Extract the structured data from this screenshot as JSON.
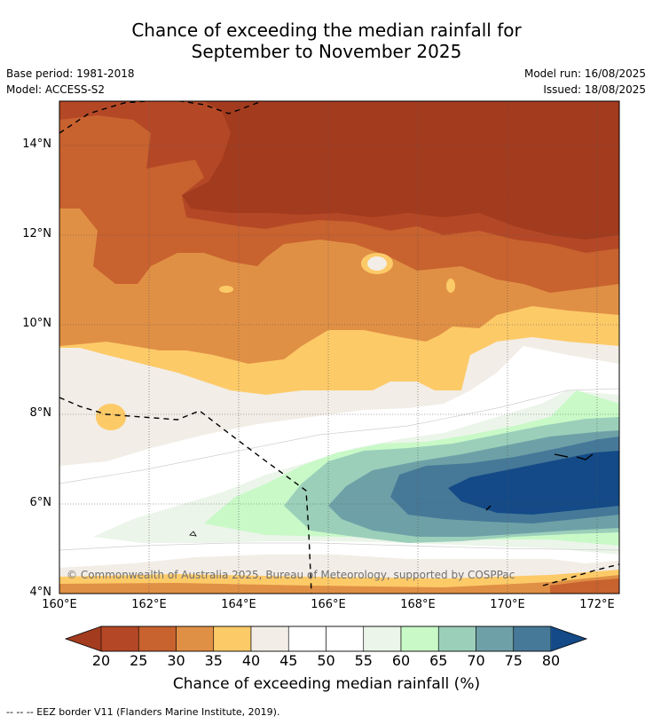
{
  "title": {
    "line1": "Chance of exceeding the median rainfall for",
    "line2": "September to November 2025"
  },
  "meta": {
    "base_period": "Base period: 1981-2018",
    "model": "Model: ACCESS-S2",
    "model_run": "Model run: 16/08/2025",
    "issued": "Issued: 18/08/2025"
  },
  "map": {
    "lon_range": [
      160,
      172.5
    ],
    "lat_range": [
      4,
      15
    ],
    "x_ticks": [
      "160°E",
      "162°E",
      "164°E",
      "166°E",
      "168°E",
      "170°E",
      "172°E"
    ],
    "y_ticks": [
      "4°N",
      "6°N",
      "8°N",
      "10°N",
      "12°N",
      "14°N"
    ],
    "copyright": "© Commonwealth of Australia 2025, Bureau of Meteorology, supported by COSPPac"
  },
  "colorbar": {
    "ticks": [
      "20",
      "25",
      "30",
      "35",
      "40",
      "45",
      "50",
      "55",
      "60",
      "65",
      "70",
      "75",
      "80"
    ],
    "colors": [
      "#a33b1e",
      "#b44826",
      "#c8622f",
      "#e09045",
      "#fdca68",
      "#f2ede6",
      "#ffffff",
      "#ffffff",
      "#ebf5e9",
      "#c8f9c7",
      "#9bcfba",
      "#6ea1a7",
      "#467998",
      "#134a87"
    ],
    "label": "Chance of exceeding median rainfall (%)"
  },
  "legend": {
    "eez": "--  --  -- EEZ border V11 (Flanders Marine Institute, 2019)."
  }
}
